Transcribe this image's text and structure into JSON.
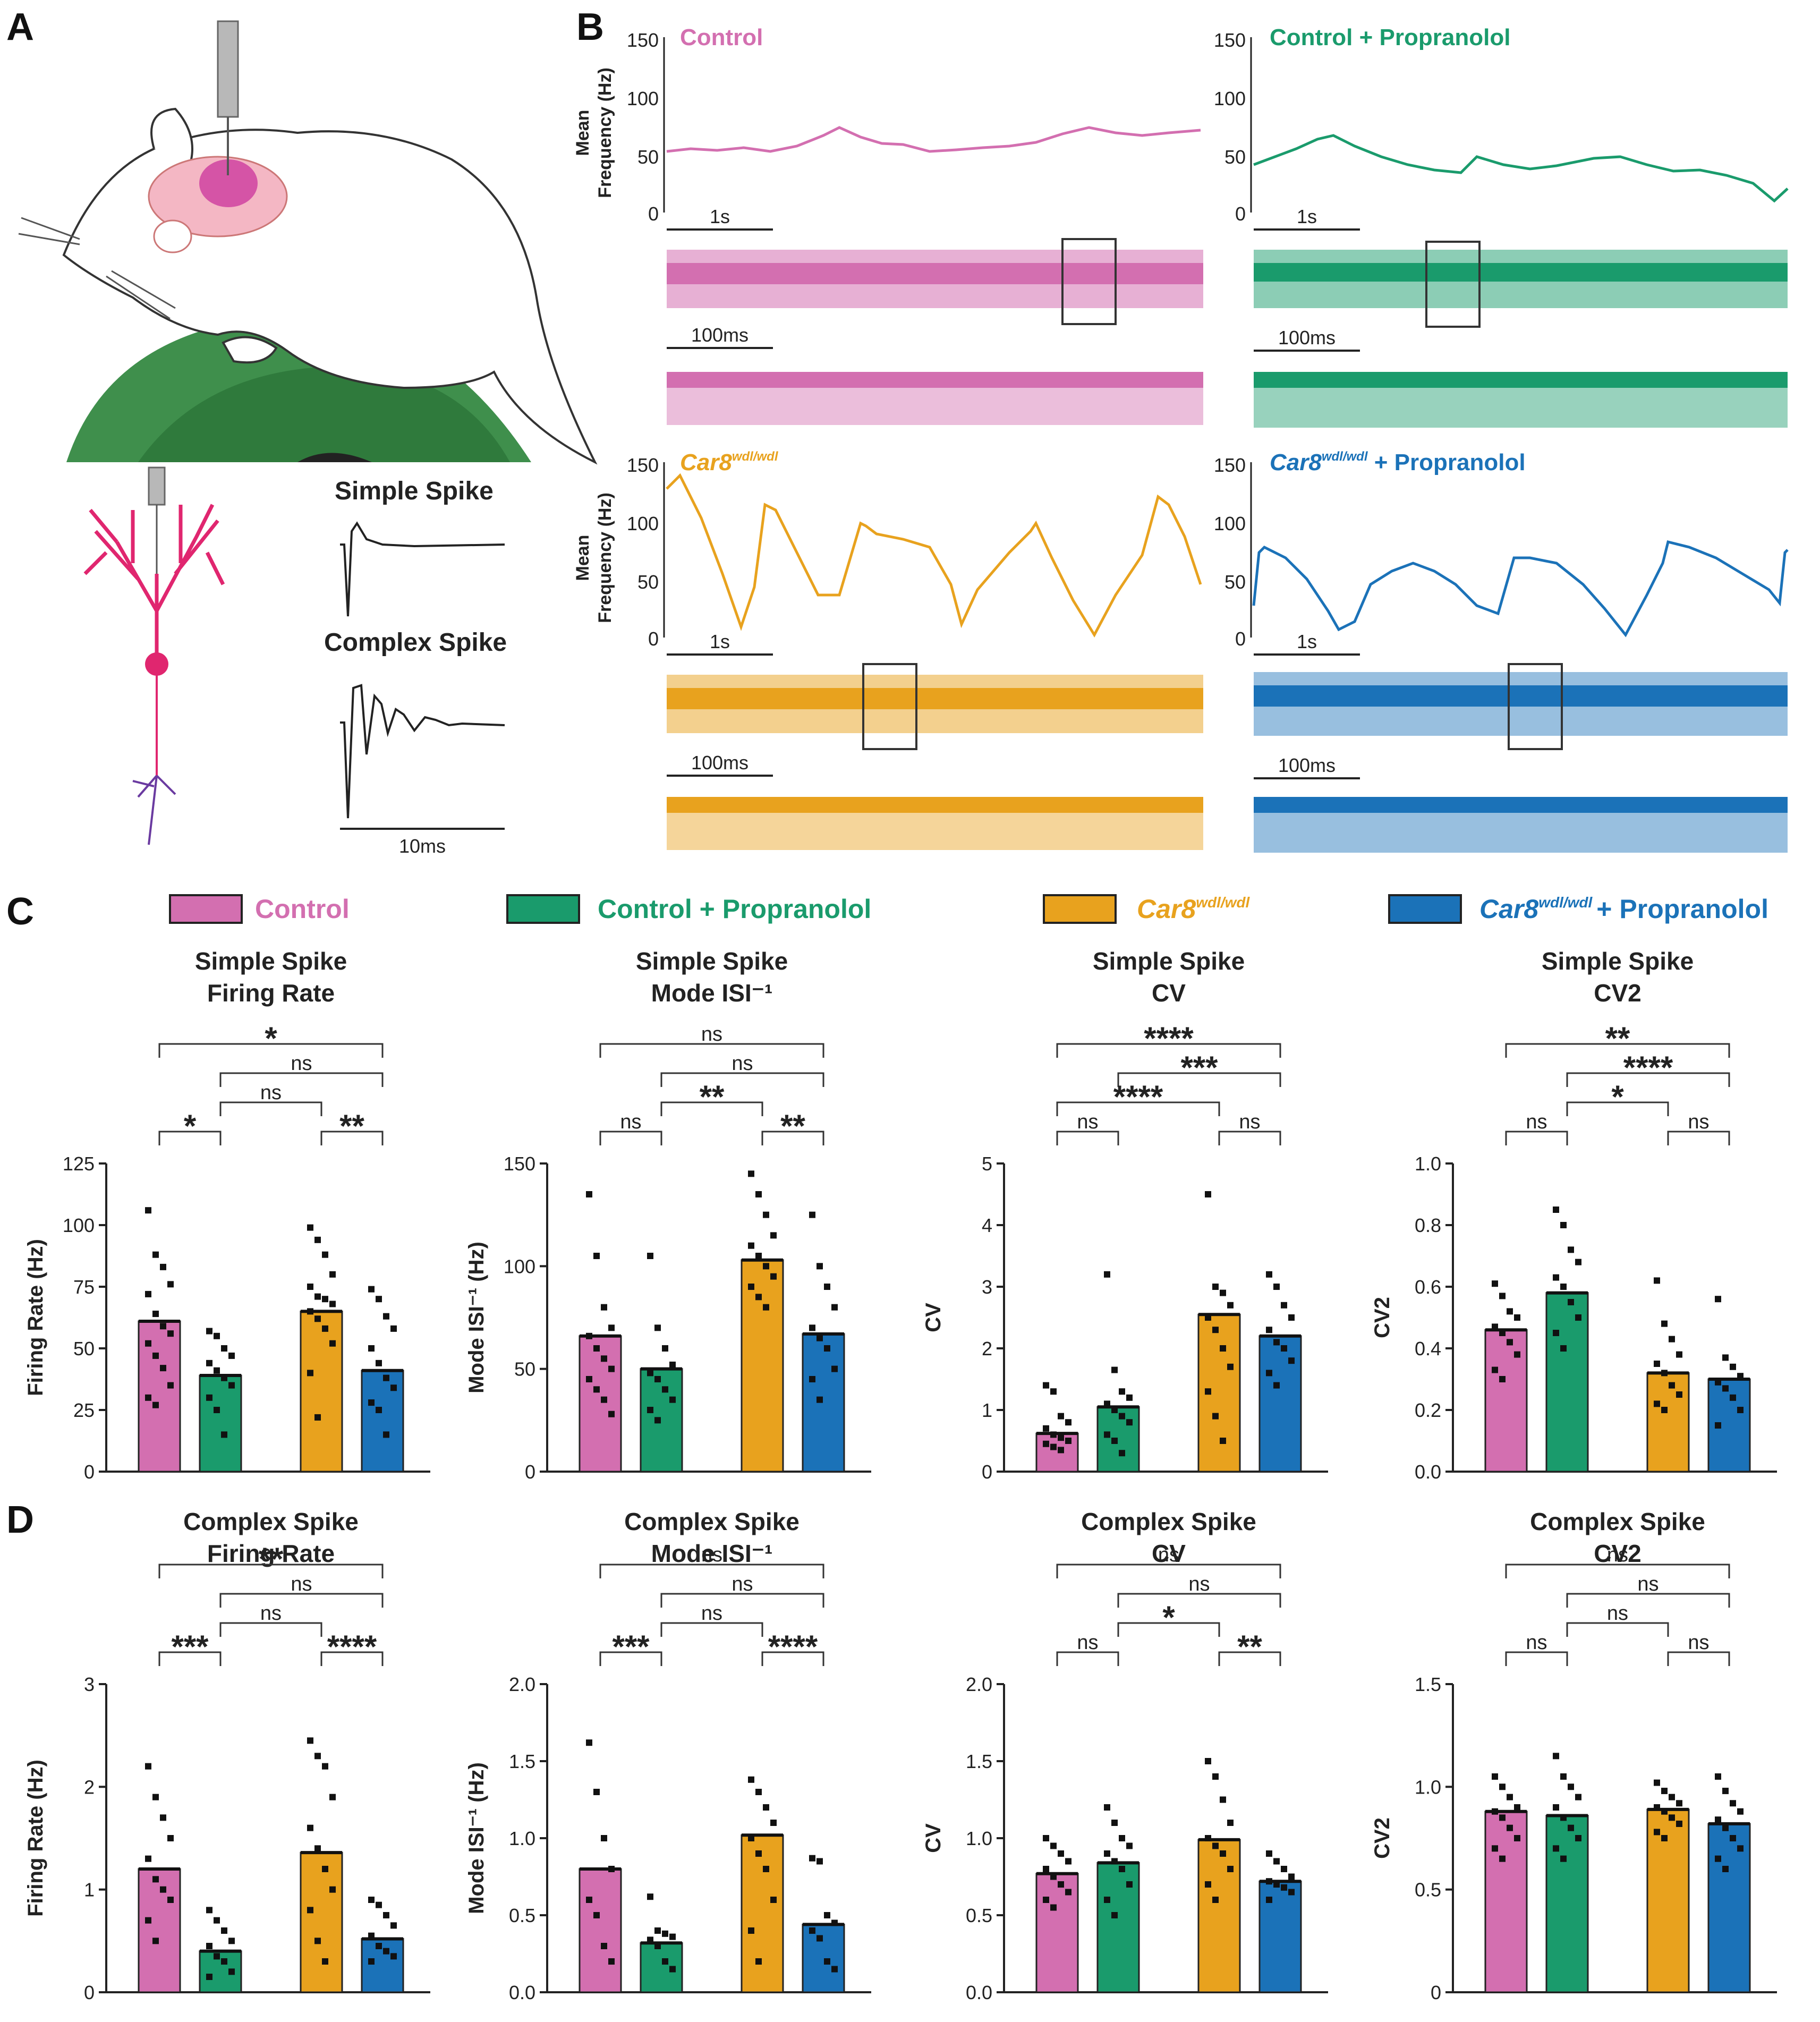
{
  "figure": {
    "panels": {
      "a": "A",
      "b": "B",
      "c": "C",
      "d": "D"
    },
    "panel_a": {
      "simple_spike_label": "Simple Spike",
      "complex_spike_label": "Complex Spike",
      "scale_10ms": "10ms"
    },
    "panel_b": {
      "ylabel_line1": "Mean",
      "ylabel_line2": "Frequency (Hz)",
      "yticks": [
        "150",
        "100",
        "50",
        "0"
      ],
      "scale_1s": "1s",
      "scale_100ms": "100ms",
      "traces": [
        {
          "title": "Control",
          "color": "#d36fb0",
          "italic": false,
          "sup": "",
          "suffix": ""
        },
        {
          "title": "Control + Propranolol",
          "color": "#1a9b6c",
          "italic": false,
          "sup": "",
          "suffix": ""
        },
        {
          "title": "Car8",
          "color": "#e8a21e",
          "italic": true,
          "sup": "wdl/wdl",
          "suffix": ""
        },
        {
          "title": "Car8",
          "color": "#1b72b8",
          "italic": true,
          "sup": "wdl/wdl",
          "suffix": " + Propranolol"
        }
      ]
    },
    "legend": [
      {
        "label": "Control",
        "color": "#d36fb0",
        "italic": false,
        "sup": "",
        "suffix": ""
      },
      {
        "label": "Control + Propranolol",
        "color": "#1a9b6c",
        "italic": false,
        "sup": "",
        "suffix": ""
      },
      {
        "label": "Car8",
        "color": "#e8a21e",
        "italic": true,
        "sup": "wdl/wdl",
        "suffix": ""
      },
      {
        "label": "Car8",
        "color": "#1b72b8",
        "italic": true,
        "sup": "wdl/wdl",
        "suffix": "+ Propranolol"
      }
    ]
  },
  "chart_data": [
    {
      "type": "bar",
      "row": "C",
      "col": 0,
      "title_lines": [
        "Simple Spike",
        "Firing Rate"
      ],
      "ylabel": "Firing Rate (Hz)",
      "ylim": [
        0,
        125
      ],
      "yticks": [
        "0",
        "25",
        "50",
        "75",
        "100",
        "125"
      ],
      "categories": [
        "Control",
        "Control + Propranolol",
        "Car8 wdl/wdl",
        "Car8 wdl/wdl + Propranolol"
      ],
      "values": [
        61,
        39,
        65,
        41
      ],
      "points": [
        [
          106,
          88,
          83,
          76,
          72,
          64,
          59,
          56,
          52,
          47,
          42,
          35,
          30,
          27
        ],
        [
          57,
          55,
          50,
          47,
          44,
          41,
          38,
          35,
          30,
          25,
          15
        ],
        [
          99,
          94,
          88,
          80,
          75,
          71,
          70,
          68,
          65,
          62,
          58,
          52,
          40,
          22
        ],
        [
          74,
          70,
          63,
          58,
          50,
          44,
          38,
          34,
          28,
          25,
          15
        ]
      ],
      "comparisons": [
        {
          "pair": [
            0,
            3
          ],
          "label": "*"
        },
        {
          "pair": [
            1,
            3
          ],
          "label": "ns"
        },
        {
          "pair": [
            1,
            2
          ],
          "label": "ns"
        },
        {
          "pair": [
            0,
            1
          ],
          "label": "*"
        },
        {
          "pair": [
            2,
            3
          ],
          "label": "**"
        }
      ]
    },
    {
      "type": "bar",
      "row": "C",
      "col": 1,
      "title_lines": [
        "Simple Spike",
        "Mode ISI⁻¹"
      ],
      "ylabel": "Mode ISI⁻¹ (Hz)",
      "ylim": [
        0,
        150
      ],
      "yticks": [
        "0",
        "50",
        "100",
        "150"
      ],
      "categories": [
        "Control",
        "Control + Propranolol",
        "Car8 wdl/wdl",
        "Car8 wdl/wdl + Propranolol"
      ],
      "values": [
        66,
        50,
        103,
        67
      ],
      "points": [
        [
          135,
          105,
          80,
          70,
          66,
          60,
          55,
          50,
          45,
          40,
          35,
          28
        ],
        [
          105,
          70,
          60,
          52,
          48,
          45,
          40,
          35,
          30,
          25
        ],
        [
          145,
          135,
          125,
          115,
          110,
          105,
          100,
          95,
          90,
          85,
          80
        ],
        [
          125,
          100,
          90,
          80,
          70,
          65,
          60,
          50,
          45,
          35
        ]
      ],
      "comparisons": [
        {
          "pair": [
            0,
            3
          ],
          "label": "ns"
        },
        {
          "pair": [
            1,
            3
          ],
          "label": "ns"
        },
        {
          "pair": [
            1,
            2
          ],
          "label": "**"
        },
        {
          "pair": [
            0,
            1
          ],
          "label": "ns"
        },
        {
          "pair": [
            2,
            3
          ],
          "label": "**"
        }
      ]
    },
    {
      "type": "bar",
      "row": "C",
      "col": 2,
      "title_lines": [
        "Simple Spike",
        "CV"
      ],
      "ylabel": "CV",
      "ylim": [
        0,
        5
      ],
      "yticks": [
        "0",
        "1",
        "2",
        "3",
        "4",
        "5"
      ],
      "categories": [
        "Control",
        "Control + Propranolol",
        "Car8 wdl/wdl",
        "Car8 wdl/wdl + Propranolol"
      ],
      "values": [
        0.62,
        1.05,
        2.55,
        2.2
      ],
      "points": [
        [
          1.4,
          1.3,
          0.9,
          0.8,
          0.7,
          0.6,
          0.55,
          0.5,
          0.45,
          0.4,
          0.35
        ],
        [
          3.2,
          1.65,
          1.3,
          1.2,
          1.1,
          1.0,
          0.9,
          0.8,
          0.6,
          0.5,
          0.3
        ],
        [
          4.5,
          3.0,
          2.9,
          2.7,
          2.5,
          2.3,
          2.0,
          1.7,
          1.3,
          0.9,
          0.5
        ],
        [
          3.2,
          3.0,
          2.7,
          2.5,
          2.3,
          2.1,
          2.0,
          1.8,
          1.6,
          1.4
        ]
      ],
      "comparisons": [
        {
          "pair": [
            0,
            3
          ],
          "label": "****"
        },
        {
          "pair": [
            1,
            3
          ],
          "label": "***"
        },
        {
          "pair": [
            0,
            2
          ],
          "label": "****"
        },
        {
          "pair": [
            0,
            1
          ],
          "label": "ns"
        },
        {
          "pair": [
            2,
            3
          ],
          "label": "ns"
        }
      ]
    },
    {
      "type": "bar",
      "row": "C",
      "col": 3,
      "title_lines": [
        "Simple Spike",
        "CV2"
      ],
      "ylabel": "CV2",
      "ylim": [
        0,
        1.0
      ],
      "yticks": [
        "0.0",
        "0.2",
        "0.4",
        "0.6",
        "0.8",
        "1.0"
      ],
      "categories": [
        "Control",
        "Control + Propranolol",
        "Car8 wdl/wdl",
        "Car8 wdl/wdl + Propranolol"
      ],
      "values": [
        0.46,
        0.58,
        0.32,
        0.3
      ],
      "points": [
        [
          0.61,
          0.57,
          0.52,
          0.5,
          0.47,
          0.45,
          0.42,
          0.38,
          0.33,
          0.3
        ],
        [
          0.85,
          0.8,
          0.72,
          0.68,
          0.63,
          0.6,
          0.55,
          0.5,
          0.45,
          0.4
        ],
        [
          0.62,
          0.48,
          0.43,
          0.38,
          0.35,
          0.32,
          0.28,
          0.25,
          0.22,
          0.2
        ],
        [
          0.56,
          0.37,
          0.34,
          0.31,
          0.29,
          0.27,
          0.24,
          0.2,
          0.15
        ]
      ],
      "comparisons": [
        {
          "pair": [
            0,
            3
          ],
          "label": "**"
        },
        {
          "pair": [
            1,
            3
          ],
          "label": "****"
        },
        {
          "pair": [
            1,
            2
          ],
          "label": "*"
        },
        {
          "pair": [
            0,
            1
          ],
          "label": "ns"
        },
        {
          "pair": [
            2,
            3
          ],
          "label": "ns"
        }
      ]
    },
    {
      "type": "bar",
      "row": "D",
      "col": 0,
      "title_lines": [
        "Complex Spike",
        "Firing Rate"
      ],
      "ylabel": "Firing Rate (Hz)",
      "ylim": [
        0,
        3
      ],
      "yticks": [
        "0",
        "1",
        "2",
        "3"
      ],
      "categories": [
        "Control",
        "Control + Propranolol",
        "Car8 wdl/wdl",
        "Car8 wdl/wdl + Propranolol"
      ],
      "values": [
        1.2,
        0.4,
        1.36,
        0.52
      ],
      "points": [
        [
          2.2,
          1.9,
          1.7,
          1.5,
          1.3,
          1.1,
          1.0,
          0.9,
          0.7,
          0.5
        ],
        [
          0.8,
          0.7,
          0.6,
          0.5,
          0.45,
          0.35,
          0.3,
          0.2,
          0.15
        ],
        [
          2.45,
          2.3,
          2.2,
          1.9,
          1.6,
          1.4,
          1.2,
          1.0,
          0.8,
          0.5,
          0.3
        ],
        [
          0.9,
          0.85,
          0.75,
          0.65,
          0.55,
          0.45,
          0.4,
          0.35,
          0.3
        ]
      ],
      "comparisons": [
        {
          "pair": [
            0,
            3
          ],
          "label": "**"
        },
        {
          "pair": [
            1,
            3
          ],
          "label": "ns"
        },
        {
          "pair": [
            1,
            2
          ],
          "label": "ns"
        },
        {
          "pair": [
            0,
            1
          ],
          "label": "***"
        },
        {
          "pair": [
            2,
            3
          ],
          "label": "****"
        }
      ]
    },
    {
      "type": "bar",
      "row": "D",
      "col": 1,
      "title_lines": [
        "Complex Spike",
        "Mode ISI⁻¹"
      ],
      "ylabel": "Mode ISI⁻¹ (Hz)",
      "ylim": [
        0,
        2.0
      ],
      "yticks": [
        "0.0",
        "0.5",
        "1.0",
        "1.5",
        "2.0"
      ],
      "categories": [
        "Control",
        "Control + Propranolol",
        "Car8 wdl/wdl",
        "Car8 wdl/wdl + Propranolol"
      ],
      "values": [
        0.8,
        0.32,
        1.02,
        0.44
      ],
      "points": [
        [
          1.62,
          1.3,
          1.0,
          0.8,
          0.6,
          0.5,
          0.3,
          0.2
        ],
        [
          0.62,
          0.4,
          0.38,
          0.36,
          0.34,
          0.3,
          0.2,
          0.15
        ],
        [
          1.38,
          1.3,
          1.2,
          1.1,
          1.0,
          0.9,
          0.8,
          0.6,
          0.4,
          0.2
        ],
        [
          0.87,
          0.85,
          0.5,
          0.45,
          0.4,
          0.35,
          0.2,
          0.15
        ]
      ],
      "comparisons": [
        {
          "pair": [
            0,
            3
          ],
          "label": "ns"
        },
        {
          "pair": [
            1,
            3
          ],
          "label": "ns"
        },
        {
          "pair": [
            1,
            2
          ],
          "label": "ns"
        },
        {
          "pair": [
            0,
            1
          ],
          "label": "***"
        },
        {
          "pair": [
            2,
            3
          ],
          "label": "****"
        }
      ]
    },
    {
      "type": "bar",
      "row": "D",
      "col": 2,
      "title_lines": [
        "Complex Spike",
        "CV"
      ],
      "ylabel": "CV",
      "ylim": [
        0,
        2.0
      ],
      "yticks": [
        "0.0",
        "0.5",
        "1.0",
        "1.5",
        "2.0"
      ],
      "categories": [
        "Control",
        "Control + Propranolol",
        "Car8 wdl/wdl",
        "Car8 wdl/wdl + Propranolol"
      ],
      "values": [
        0.77,
        0.84,
        0.99,
        0.72
      ],
      "points": [
        [
          1.0,
          0.95,
          0.9,
          0.85,
          0.8,
          0.75,
          0.7,
          0.65,
          0.6,
          0.55
        ],
        [
          1.2,
          1.1,
          1.0,
          0.95,
          0.9,
          0.85,
          0.8,
          0.7,
          0.6,
          0.5
        ],
        [
          1.5,
          1.4,
          1.25,
          1.1,
          1.0,
          0.95,
          0.9,
          0.8,
          0.7,
          0.6
        ],
        [
          0.9,
          0.85,
          0.8,
          0.75,
          0.72,
          0.7,
          0.68,
          0.65,
          0.6
        ]
      ],
      "comparisons": [
        {
          "pair": [
            0,
            3
          ],
          "label": "ns"
        },
        {
          "pair": [
            1,
            3
          ],
          "label": "ns"
        },
        {
          "pair": [
            1,
            2
          ],
          "label": "*"
        },
        {
          "pair": [
            0,
            1
          ],
          "label": "ns"
        },
        {
          "pair": [
            2,
            3
          ],
          "label": "**"
        }
      ]
    },
    {
      "type": "bar",
      "row": "D",
      "col": 3,
      "title_lines": [
        "Complex Spike",
        "CV2"
      ],
      "ylabel": "CV2",
      "ylim": [
        0,
        1.5
      ],
      "yticks": [
        "0",
        "0.5",
        "1.0",
        "1.5"
      ],
      "categories": [
        "Control",
        "Control + Propranolol",
        "Car8 wdl/wdl",
        "Car8 wdl/wdl + Propranolol"
      ],
      "values": [
        0.88,
        0.86,
        0.89,
        0.82
      ],
      "points": [
        [
          1.05,
          1.0,
          0.95,
          0.9,
          0.88,
          0.85,
          0.8,
          0.75,
          0.7,
          0.65
        ],
        [
          1.15,
          1.05,
          1.0,
          0.95,
          0.9,
          0.85,
          0.8,
          0.75,
          0.7,
          0.65
        ],
        [
          1.02,
          0.98,
          0.95,
          0.92,
          0.9,
          0.88,
          0.85,
          0.82,
          0.78,
          0.75
        ],
        [
          1.05,
          0.98,
          0.92,
          0.88,
          0.84,
          0.8,
          0.75,
          0.7,
          0.65,
          0.6
        ]
      ],
      "comparisons": [
        {
          "pair": [
            0,
            3
          ],
          "label": "ns"
        },
        {
          "pair": [
            1,
            3
          ],
          "label": "ns"
        },
        {
          "pair": [
            1,
            2
          ],
          "label": "ns"
        },
        {
          "pair": [
            0,
            1
          ],
          "label": "ns"
        },
        {
          "pair": [
            2,
            3
          ],
          "label": "ns"
        }
      ]
    }
  ]
}
